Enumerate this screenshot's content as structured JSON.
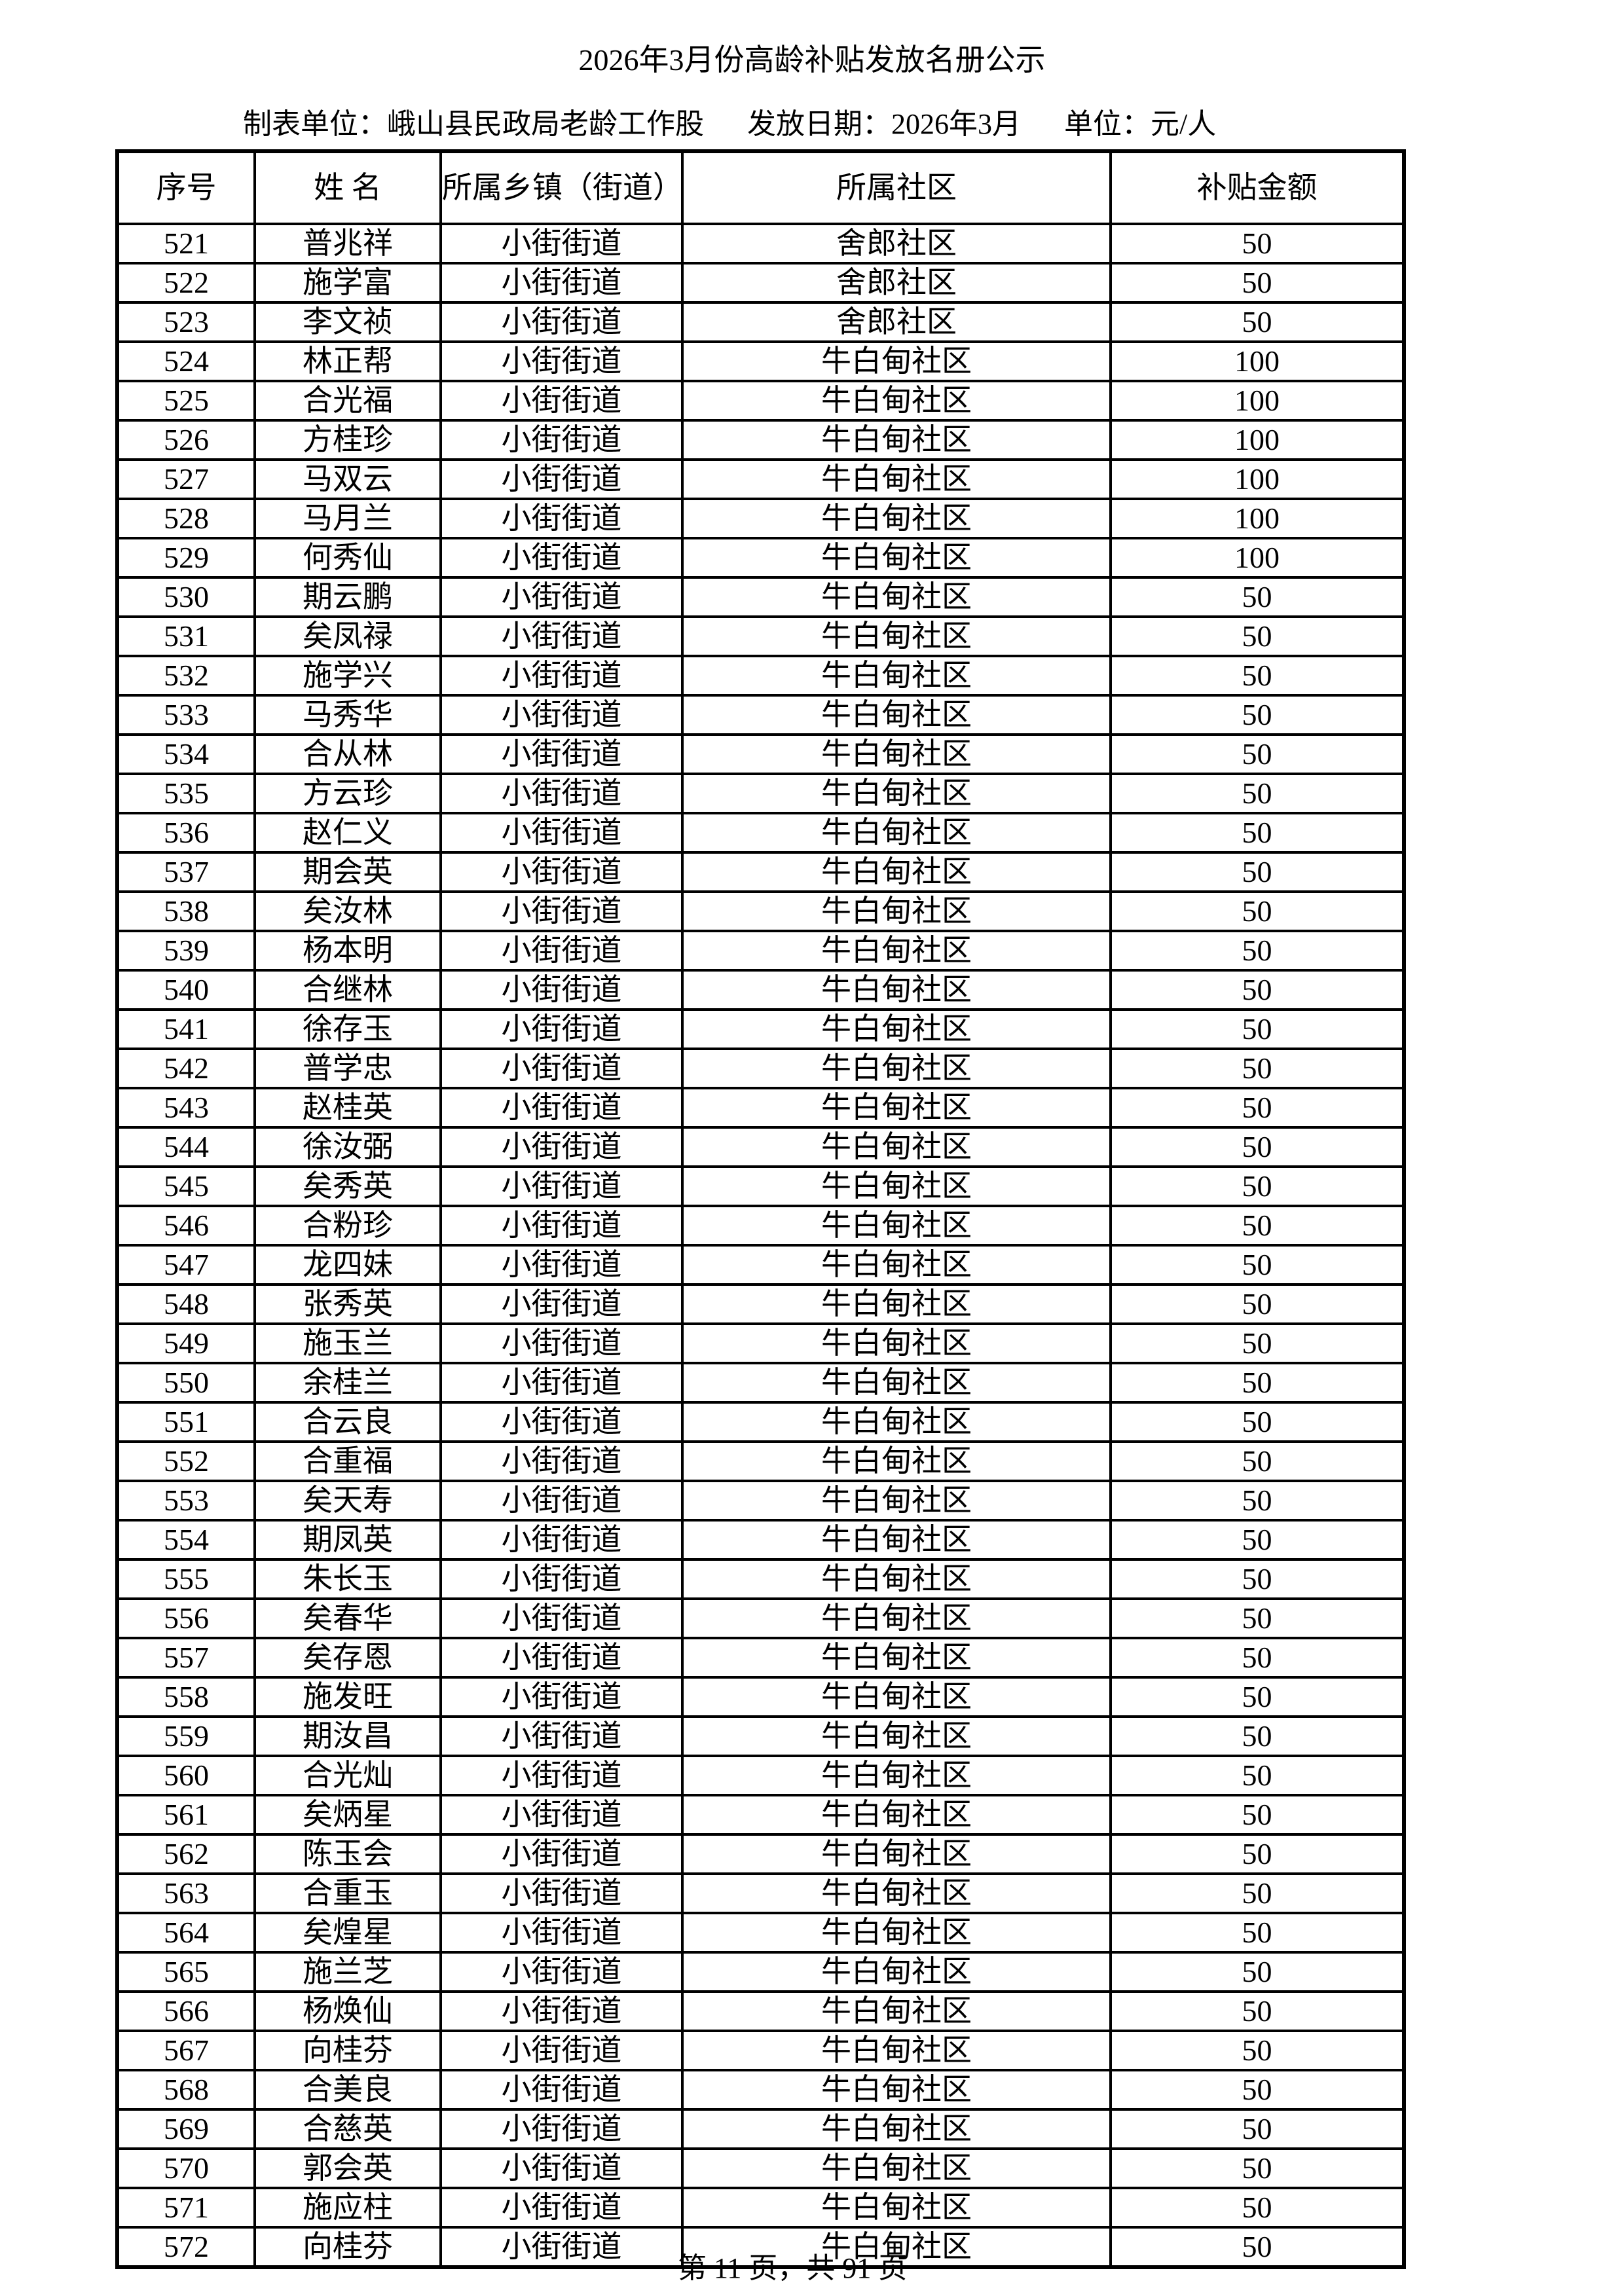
{
  "title": "2026年3月份高龄补贴发放名册公示",
  "subheader": {
    "unit": "制表单位：峨山县民政局老龄工作股",
    "date": "发放日期：2026年3月",
    "currency": "单位：元/人"
  },
  "columns": [
    "序号",
    "姓 名",
    "所属乡镇（街道）",
    "所属社区",
    "补贴金额"
  ],
  "rows": [
    [
      "521",
      "普兆祥",
      "小街街道",
      "舍郎社区",
      "50"
    ],
    [
      "522",
      "施学富",
      "小街街道",
      "舍郎社区",
      "50"
    ],
    [
      "523",
      "李文祯",
      "小街街道",
      "舍郎社区",
      "50"
    ],
    [
      "524",
      "林正帮",
      "小街街道",
      "牛白甸社区",
      "100"
    ],
    [
      "525",
      "合光福",
      "小街街道",
      "牛白甸社区",
      "100"
    ],
    [
      "526",
      "方桂珍",
      "小街街道",
      "牛白甸社区",
      "100"
    ],
    [
      "527",
      "马双云",
      "小街街道",
      "牛白甸社区",
      "100"
    ],
    [
      "528",
      "马月兰",
      "小街街道",
      "牛白甸社区",
      "100"
    ],
    [
      "529",
      "何秀仙",
      "小街街道",
      "牛白甸社区",
      "100"
    ],
    [
      "530",
      "期云鹏",
      "小街街道",
      "牛白甸社区",
      "50"
    ],
    [
      "531",
      "矣凤禄",
      "小街街道",
      "牛白甸社区",
      "50"
    ],
    [
      "532",
      "施学兴",
      "小街街道",
      "牛白甸社区",
      "50"
    ],
    [
      "533",
      "马秀华",
      "小街街道",
      "牛白甸社区",
      "50"
    ],
    [
      "534",
      "合从林",
      "小街街道",
      "牛白甸社区",
      "50"
    ],
    [
      "535",
      "方云珍",
      "小街街道",
      "牛白甸社区",
      "50"
    ],
    [
      "536",
      "赵仁义",
      "小街街道",
      "牛白甸社区",
      "50"
    ],
    [
      "537",
      "期会英",
      "小街街道",
      "牛白甸社区",
      "50"
    ],
    [
      "538",
      "矣汝林",
      "小街街道",
      "牛白甸社区",
      "50"
    ],
    [
      "539",
      "杨本明",
      "小街街道",
      "牛白甸社区",
      "50"
    ],
    [
      "540",
      "合继林",
      "小街街道",
      "牛白甸社区",
      "50"
    ],
    [
      "541",
      "徐存玉",
      "小街街道",
      "牛白甸社区",
      "50"
    ],
    [
      "542",
      "普学忠",
      "小街街道",
      "牛白甸社区",
      "50"
    ],
    [
      "543",
      "赵桂英",
      "小街街道",
      "牛白甸社区",
      "50"
    ],
    [
      "544",
      "徐汝弼",
      "小街街道",
      "牛白甸社区",
      "50"
    ],
    [
      "545",
      "矣秀英",
      "小街街道",
      "牛白甸社区",
      "50"
    ],
    [
      "546",
      "合粉珍",
      "小街街道",
      "牛白甸社区",
      "50"
    ],
    [
      "547",
      "龙四妹",
      "小街街道",
      "牛白甸社区",
      "50"
    ],
    [
      "548",
      "张秀英",
      "小街街道",
      "牛白甸社区",
      "50"
    ],
    [
      "549",
      "施玉兰",
      "小街街道",
      "牛白甸社区",
      "50"
    ],
    [
      "550",
      "余桂兰",
      "小街街道",
      "牛白甸社区",
      "50"
    ],
    [
      "551",
      "合云良",
      "小街街道",
      "牛白甸社区",
      "50"
    ],
    [
      "552",
      "合重福",
      "小街街道",
      "牛白甸社区",
      "50"
    ],
    [
      "553",
      "矣天寿",
      "小街街道",
      "牛白甸社区",
      "50"
    ],
    [
      "554",
      "期凤英",
      "小街街道",
      "牛白甸社区",
      "50"
    ],
    [
      "555",
      "朱长玉",
      "小街街道",
      "牛白甸社区",
      "50"
    ],
    [
      "556",
      "矣春华",
      "小街街道",
      "牛白甸社区",
      "50"
    ],
    [
      "557",
      "矣存恩",
      "小街街道",
      "牛白甸社区",
      "50"
    ],
    [
      "558",
      "施发旺",
      "小街街道",
      "牛白甸社区",
      "50"
    ],
    [
      "559",
      "期汝昌",
      "小街街道",
      "牛白甸社区",
      "50"
    ],
    [
      "560",
      "合光灿",
      "小街街道",
      "牛白甸社区",
      "50"
    ],
    [
      "561",
      "矣炳星",
      "小街街道",
      "牛白甸社区",
      "50"
    ],
    [
      "562",
      "陈玉会",
      "小街街道",
      "牛白甸社区",
      "50"
    ],
    [
      "563",
      "合重玉",
      "小街街道",
      "牛白甸社区",
      "50"
    ],
    [
      "564",
      "矣煌星",
      "小街街道",
      "牛白甸社区",
      "50"
    ],
    [
      "565",
      "施兰芝",
      "小街街道",
      "牛白甸社区",
      "50"
    ],
    [
      "566",
      "杨焕仙",
      "小街街道",
      "牛白甸社区",
      "50"
    ],
    [
      "567",
      "向桂芬",
      "小街街道",
      "牛白甸社区",
      "50"
    ],
    [
      "568",
      "合美良",
      "小街街道",
      "牛白甸社区",
      "50"
    ],
    [
      "569",
      "合慈英",
      "小街街道",
      "牛白甸社区",
      "50"
    ],
    [
      "570",
      "郭会英",
      "小街街道",
      "牛白甸社区",
      "50"
    ],
    [
      "571",
      "施应柱",
      "小街街道",
      "牛白甸社区",
      "50"
    ],
    [
      "572",
      "向桂芬",
      "小街街道",
      "牛白甸社区",
      "50"
    ]
  ],
  "footer": "第 11 页，共 91 页"
}
